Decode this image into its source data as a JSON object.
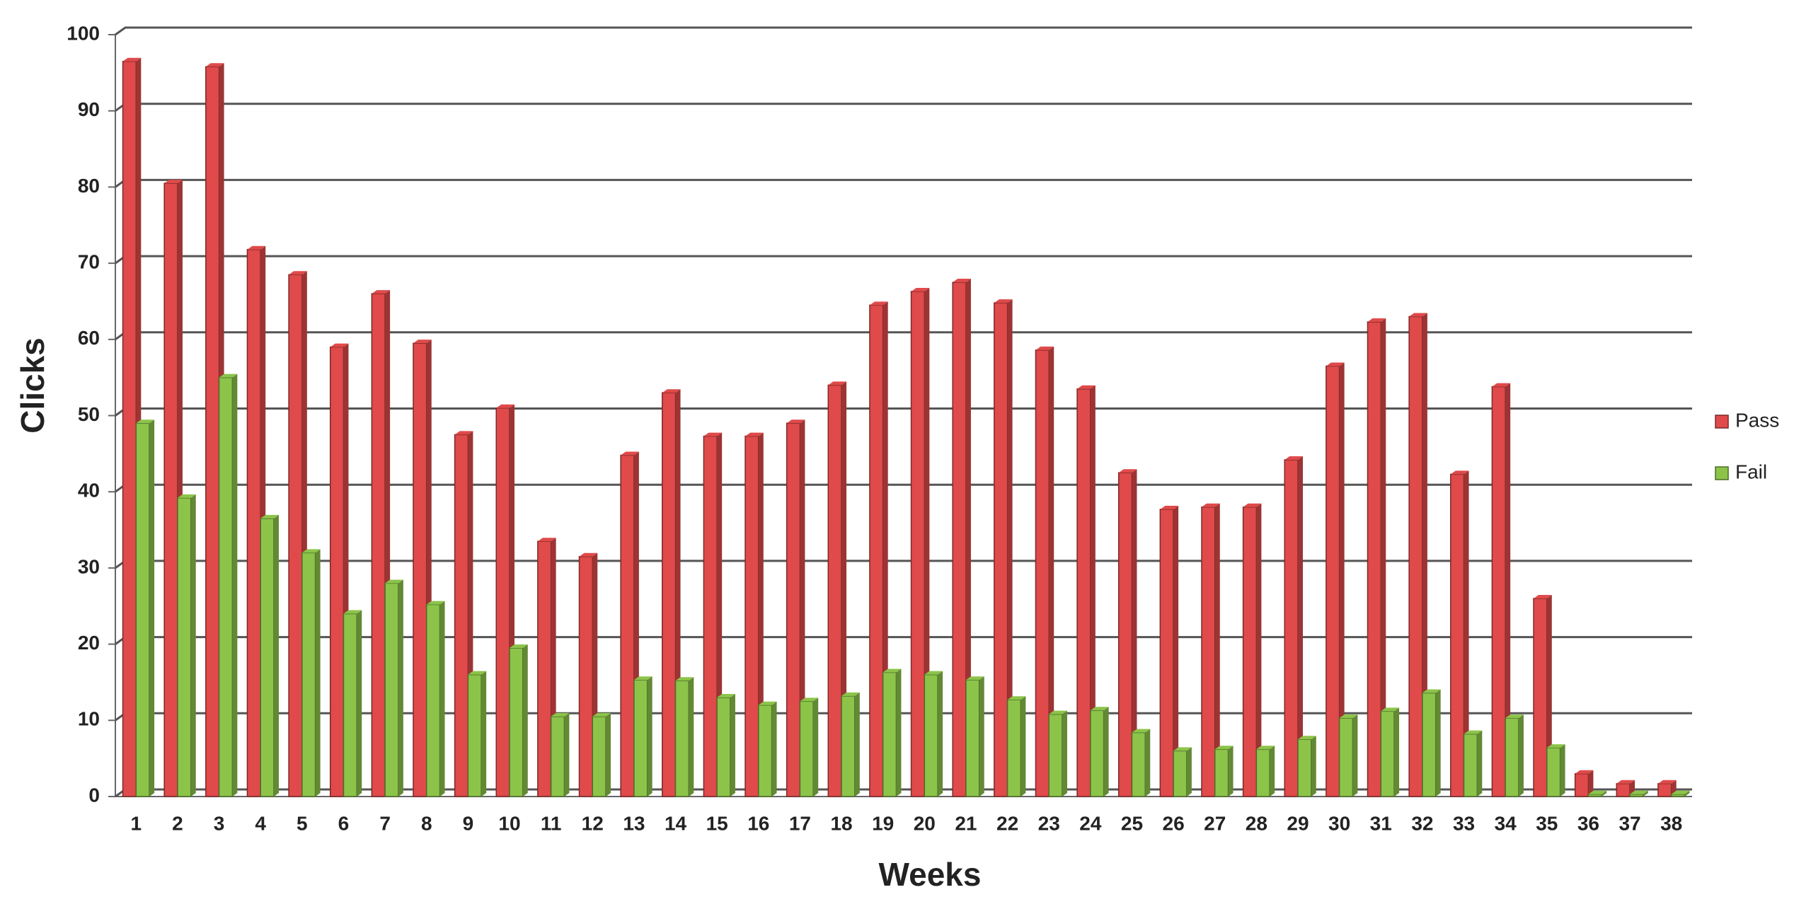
{
  "chart_data": {
    "type": "bar",
    "x_label": "Weeks",
    "y_label": "Clicks",
    "categories": [
      "1",
      "2",
      "3",
      "4",
      "5",
      "6",
      "7",
      "8",
      "9",
      "10",
      "11",
      "12",
      "13",
      "14",
      "15",
      "16",
      "17",
      "18",
      "19",
      "20",
      "21",
      "22",
      "23",
      "24",
      "25",
      "26",
      "27",
      "28",
      "29",
      "30",
      "31",
      "32",
      "33",
      "34",
      "35",
      "36",
      "37",
      "38"
    ],
    "series": [
      {
        "name": "Pass",
        "color": "#e04a4a",
        "values": [
          96.5,
          80.5,
          95.8,
          71.8,
          68.5,
          59,
          66,
          59.5,
          47.5,
          51,
          33.5,
          31.5,
          44.8,
          53,
          47.3,
          47.3,
          49,
          54,
          64.5,
          66.3,
          67.5,
          64.8,
          58.6,
          53.5,
          42.5,
          37.7,
          38,
          38,
          44.2,
          56.5,
          62.3,
          63,
          42.3,
          53.8,
          26,
          3,
          1.7,
          1.7
        ]
      },
      {
        "name": "Fail",
        "color": "#8cc44a",
        "values": [
          49,
          39.2,
          55,
          36.5,
          32,
          24,
          28,
          25.2,
          16,
          19.5,
          10.5,
          10.5,
          15.3,
          15.2,
          13,
          12,
          12.5,
          13.2,
          16.3,
          16,
          15.3,
          12.7,
          10.8,
          11.3,
          8.4,
          6,
          6.2,
          6.2,
          7.5,
          10.3,
          11.2,
          13.6,
          8.2,
          10.3,
          6.4,
          0.3,
          0.3,
          0.3
        ]
      }
    ],
    "ylim": [
      0,
      100
    ],
    "yticks": [
      0,
      10,
      20,
      30,
      40,
      50,
      60,
      70,
      80,
      90,
      100
    ],
    "grid": true,
    "legend": "right"
  }
}
